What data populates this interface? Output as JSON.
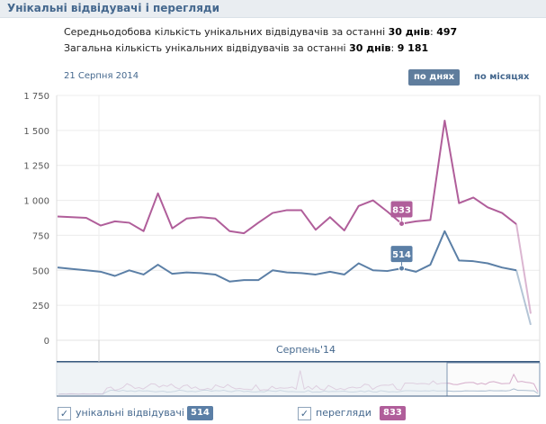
{
  "header": {
    "title": "Унікальні відвідувачі і перегляди"
  },
  "stats": {
    "avg_prefix": "Середньодобова кількість унікальних відвідувачів за останні ",
    "avg_days": "30 днів",
    "avg_sep": ": ",
    "avg_value": "497",
    "total_prefix": "Загальна кількість унікальних відвідувачів за останні ",
    "total_days": "30 днів",
    "total_sep": ": ",
    "total_value": "9 181"
  },
  "date_label": "21 Серпня 2014",
  "controls": {
    "by_days": "по днях",
    "by_months": "по місяцях"
  },
  "colors": {
    "visitors": "#5b7fa6",
    "views": "#b05e9a",
    "grid": "#ececec",
    "axis": "#3a5a7f"
  },
  "chart_data": {
    "type": "line",
    "x_axis_label": "Серпень'14",
    "y_ticks": [
      "0",
      "250",
      "500",
      "750",
      "1 000",
      "1 250",
      "1 500",
      "1 750"
    ],
    "ylim": [
      0,
      1750
    ],
    "grid": true,
    "series": [
      {
        "name": "унікальні відвідувачі",
        "color": "#5b7fa6",
        "values": [
          520,
          510,
          500,
          490,
          460,
          500,
          470,
          540,
          475,
          485,
          480,
          470,
          420,
          430,
          430,
          500,
          485,
          480,
          470,
          490,
          470,
          550,
          500,
          495,
          514,
          490,
          540,
          780,
          570,
          565,
          550,
          520,
          500,
          110
        ],
        "highlight": {
          "index": 24,
          "label": "514"
        },
        "legend_value": "514"
      },
      {
        "name": "перегляди",
        "color": "#b05e9a",
        "values": [
          885,
          880,
          875,
          820,
          850,
          840,
          780,
          1050,
          800,
          870,
          880,
          870,
          780,
          765,
          840,
          910,
          930,
          930,
          790,
          880,
          785,
          960,
          1000,
          920,
          833,
          850,
          860,
          1570,
          980,
          1020,
          950,
          910,
          830,
          190
        ],
        "highlight": {
          "index": 24,
          "label": "833"
        },
        "legend_value": "833"
      }
    ]
  },
  "legend": [
    {
      "label": "унікальні відвідувачі",
      "value": "514",
      "checkbox": "✓"
    },
    {
      "label": "перегляди",
      "value": "833",
      "checkbox": "✓"
    }
  ]
}
